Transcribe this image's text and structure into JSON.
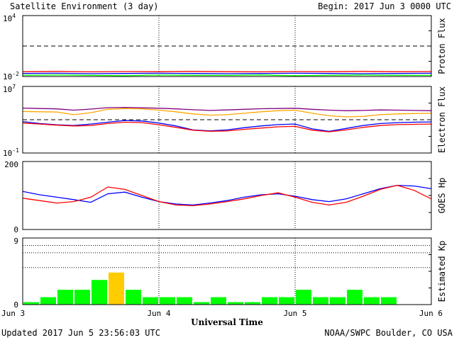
{
  "header": {
    "title": "Satellite Environment (3 day)",
    "begin": "Begin:  2017 Jun 3 0000 UTC"
  },
  "footer": {
    "updated": "Updated 2017 Jun  5 23:56:03 UTC",
    "credit": "NOAA/SWPC Boulder, CO USA"
  },
  "chart_data": [
    {
      "type": "line",
      "title": "Proton Flux",
      "yscale": "log",
      "ylim": [
        0.01,
        10000
      ],
      "yticks": [
        {
          "base": "10",
          "exp": "4"
        },
        {
          "base": "10",
          "exp": "-2"
        }
      ],
      "threshold": 10,
      "x": [
        0,
        6,
        12,
        18,
        24,
        30,
        36,
        42,
        48,
        54,
        60,
        66,
        72
      ],
      "series": [
        {
          "color": "#ff0000",
          "values": [
            0.03,
            0.032,
            0.029,
            0.031,
            0.03,
            0.032,
            0.03,
            0.029,
            0.031,
            0.03,
            0.032,
            0.03,
            0.031
          ]
        },
        {
          "color": "#0000ff",
          "values": [
            0.02,
            0.021,
            0.019,
            0.02,
            0.021,
            0.02,
            0.019,
            0.02,
            0.021,
            0.02,
            0.019,
            0.02,
            0.021
          ]
        },
        {
          "color": "#00ff00",
          "values": [
            0.013,
            0.014,
            0.013,
            0.012,
            0.014,
            0.013,
            0.013,
            0.014,
            0.012,
            0.013,
            0.014,
            0.013,
            0.013
          ]
        }
      ]
    },
    {
      "type": "line",
      "title": "Electron Flux",
      "yscale": "log",
      "ylim": [
        0.1,
        10000000
      ],
      "yticks": [
        {
          "base": "10",
          "exp": "7"
        },
        {
          "base": "10",
          "exp": "-1"
        }
      ],
      "threshold": 1000,
      "x": [
        0,
        3,
        6,
        9,
        12,
        15,
        18,
        21,
        24,
        27,
        30,
        33,
        36,
        39,
        42,
        45,
        48,
        51,
        54,
        57,
        60,
        63,
        66,
        69,
        72
      ],
      "series": [
        {
          "color": "#800080",
          "values": [
            25000,
            22000,
            20000,
            14000,
            19000,
            28000,
            30000,
            27000,
            24000,
            20000,
            16000,
            13000,
            15000,
            18000,
            21000,
            22000,
            24000,
            18000,
            14000,
            12000,
            13000,
            15000,
            14000,
            13000,
            12000
          ]
        },
        {
          "color": "#ffa500",
          "values": [
            10000,
            9000,
            8500,
            4000,
            7000,
            18000,
            22000,
            20000,
            14000,
            9000,
            5000,
            3500,
            4000,
            6000,
            9000,
            12000,
            14000,
            6000,
            3000,
            2200,
            2500,
            4000,
            5000,
            5500,
            6000
          ]
        },
        {
          "color": "#0000ff",
          "values": [
            600,
            350,
            250,
            200,
            300,
            500,
            800,
            700,
            400,
            180,
            60,
            45,
            60,
            110,
            180,
            260,
            300,
            80,
            40,
            90,
            200,
            350,
            450,
            500,
            550
          ]
        },
        {
          "color": "#ff0000",
          "values": [
            400,
            300,
            220,
            180,
            200,
            350,
            500,
            450,
            250,
            120,
            55,
            40,
            45,
            70,
            100,
            140,
            160,
            55,
            35,
            60,
            120,
            200,
            260,
            280,
            300
          ]
        }
      ]
    },
    {
      "type": "line",
      "title": "GOES Hp",
      "yscale": "linear",
      "ylim": [
        0,
        200
      ],
      "yticks": [
        {
          "label": "200",
          "value": 200
        },
        {
          "label": "0",
          "value": 0
        }
      ],
      "x": [
        0,
        3,
        6,
        9,
        12,
        15,
        18,
        21,
        24,
        27,
        30,
        33,
        36,
        39,
        42,
        45,
        48,
        51,
        54,
        57,
        60,
        63,
        66,
        69,
        72
      ],
      "series": [
        {
          "color": "#0000ff",
          "values": [
            112,
            102,
            95,
            88,
            80,
            105,
            110,
            95,
            82,
            75,
            72,
            78,
            85,
            95,
            102,
            105,
            98,
            88,
            82,
            90,
            105,
            120,
            130,
            128,
            120
          ]
        },
        {
          "color": "#ff0000",
          "values": [
            92,
            85,
            78,
            82,
            95,
            125,
            118,
            100,
            82,
            72,
            70,
            75,
            82,
            90,
            100,
            108,
            95,
            80,
            72,
            80,
            98,
            118,
            130,
            115,
            90
          ]
        }
      ]
    },
    {
      "type": "bar",
      "title": "Estimated Kp",
      "ylim": [
        0,
        9
      ],
      "yticks": [
        {
          "label": "9",
          "value": 9
        },
        {
          "label": "0",
          "value": 0
        }
      ],
      "gridlines": [
        5,
        7,
        8,
        9
      ],
      "values": [
        0.33,
        1,
        2,
        2,
        3.33,
        4.33,
        2,
        1,
        1,
        1,
        0.33,
        1,
        0.33,
        0.33,
        1,
        1,
        2,
        1,
        1,
        2,
        1,
        1,
        0,
        0
      ],
      "colors": [
        "#00ff00",
        "#00ff00",
        "#00ff00",
        "#00ff00",
        "#00ff00",
        "#ffcc00",
        "#00ff00",
        "#00ff00",
        "#00ff00",
        "#00ff00",
        "#00ff00",
        "#00ff00",
        "#00ff00",
        "#00ff00",
        "#00ff00",
        "#00ff00",
        "#00ff00",
        "#00ff00",
        "#00ff00",
        "#00ff00",
        "#00ff00",
        "#00ff00",
        "#00ff00",
        "#00ff00"
      ]
    }
  ],
  "x_axis": {
    "label": "Universal Time",
    "ticks": [
      {
        "label": "Jun 3",
        "value": 0
      },
      {
        "label": "Jun 4",
        "value": 24
      },
      {
        "label": "Jun 5",
        "value": 48
      },
      {
        "label": "Jun 6",
        "value": 72
      }
    ],
    "range": [
      0,
      72
    ]
  }
}
